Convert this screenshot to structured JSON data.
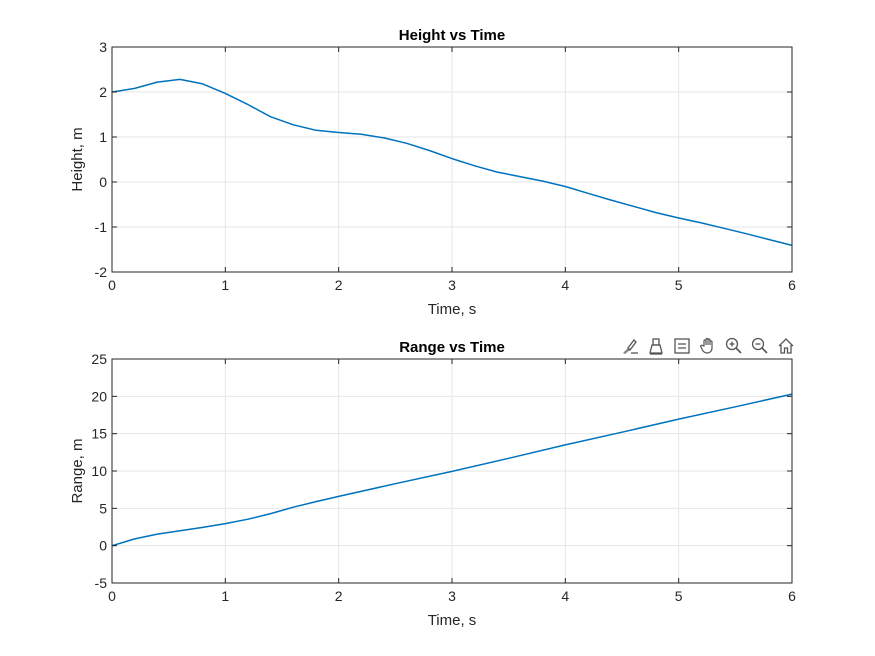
{
  "line_color": "#0072BD",
  "grid_color": "#e6e6e6",
  "toolbar": {
    "icons": [
      "brush-icon",
      "print-icon",
      "datatips-icon",
      "pan-icon",
      "zoom-in-icon",
      "zoom-out-icon",
      "home-icon"
    ]
  },
  "chart_data": [
    {
      "type": "line",
      "title": "Height vs Time",
      "xlabel": "Time, s",
      "ylabel": "Height, m",
      "xlim": [
        0,
        6
      ],
      "ylim": [
        -2,
        3
      ],
      "grid": true,
      "xticks": [
        "0",
        "1",
        "2",
        "3",
        "4",
        "5",
        "6"
      ],
      "yticks": [
        "-2",
        "-1",
        "0",
        "1",
        "2",
        "3"
      ],
      "series": [
        {
          "x": [
            0,
            0.2,
            0.4,
            0.6,
            0.8,
            1.0,
            1.2,
            1.4,
            1.6,
            1.8,
            2.0,
            2.2,
            2.4,
            2.6,
            2.8,
            3.0,
            3.2,
            3.4,
            3.6,
            3.8,
            4.0,
            4.2,
            4.4,
            4.6,
            4.8,
            5.0,
            5.2,
            5.4,
            5.6,
            5.8,
            6.0
          ],
          "y": [
            2.0,
            2.08,
            2.22,
            2.28,
            2.18,
            1.97,
            1.72,
            1.45,
            1.27,
            1.15,
            1.1,
            1.06,
            0.98,
            0.86,
            0.7,
            0.52,
            0.36,
            0.22,
            0.12,
            0.02,
            -0.1,
            -0.25,
            -0.4,
            -0.54,
            -0.68,
            -0.8,
            -0.91,
            -1.03,
            -1.15,
            -1.28,
            -1.41
          ]
        }
      ]
    },
    {
      "type": "line",
      "title": "Range vs Time",
      "xlabel": "Time, s",
      "ylabel": "Range, m",
      "xlim": [
        0,
        6
      ],
      "ylim": [
        -5,
        25
      ],
      "grid": true,
      "xticks": [
        "0",
        "1",
        "2",
        "3",
        "4",
        "5",
        "6"
      ],
      "yticks": [
        "-5",
        "0",
        "5",
        "10",
        "15",
        "20",
        "25"
      ],
      "series": [
        {
          "x": [
            0,
            0.2,
            0.4,
            0.6,
            0.8,
            1.0,
            1.2,
            1.4,
            1.6,
            1.8,
            2.0,
            2.5,
            3.0,
            3.5,
            4.0,
            4.5,
            5.0,
            5.5,
            6.0
          ],
          "y": [
            0,
            0.9,
            1.55,
            2.0,
            2.45,
            2.95,
            3.55,
            4.3,
            5.15,
            5.9,
            6.6,
            8.3,
            9.95,
            11.7,
            13.5,
            15.2,
            16.95,
            18.6,
            20.3
          ]
        }
      ]
    }
  ]
}
